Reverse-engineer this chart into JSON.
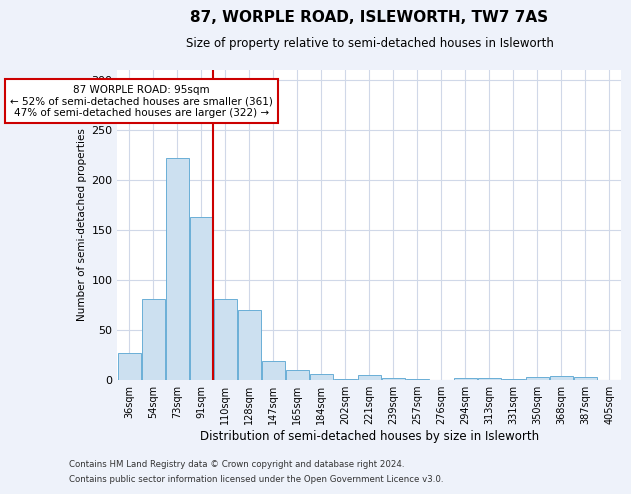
{
  "title": "87, WORPLE ROAD, ISLEWORTH, TW7 7AS",
  "subtitle": "Size of property relative to semi-detached houses in Isleworth",
  "xlabel": "Distribution of semi-detached houses by size in Isleworth",
  "ylabel": "Number of semi-detached properties",
  "categories": [
    "36sqm",
    "54sqm",
    "73sqm",
    "91sqm",
    "110sqm",
    "128sqm",
    "147sqm",
    "165sqm",
    "184sqm",
    "202sqm",
    "221sqm",
    "239sqm",
    "257sqm",
    "276sqm",
    "294sqm",
    "313sqm",
    "331sqm",
    "350sqm",
    "368sqm",
    "387sqm",
    "405sqm"
  ],
  "values": [
    27,
    81,
    222,
    163,
    81,
    70,
    19,
    10,
    6,
    1,
    5,
    2,
    1,
    0,
    2,
    2,
    1,
    3,
    4,
    3,
    0
  ],
  "bar_color": "#cce0f0",
  "bar_edge_color": "#6aaed6",
  "vline_x": 3.475,
  "annotation_text": "87 WORPLE ROAD: 95sqm\n← 52% of semi-detached houses are smaller (361)\n47% of semi-detached houses are larger (322) →",
  "annotation_box_color": "#ffffff",
  "annotation_box_edge_color": "#cc0000",
  "vline_color": "#cc0000",
  "ylim": [
    0,
    310
  ],
  "yticks": [
    0,
    50,
    100,
    150,
    200,
    250,
    300
  ],
  "grid_color": "#d0d8e8",
  "footnote1": "Contains HM Land Registry data © Crown copyright and database right 2024.",
  "footnote2": "Contains public sector information licensed under the Open Government Licence v3.0.",
  "bg_color": "#eef2fa",
  "plot_bg_color": "#ffffff"
}
